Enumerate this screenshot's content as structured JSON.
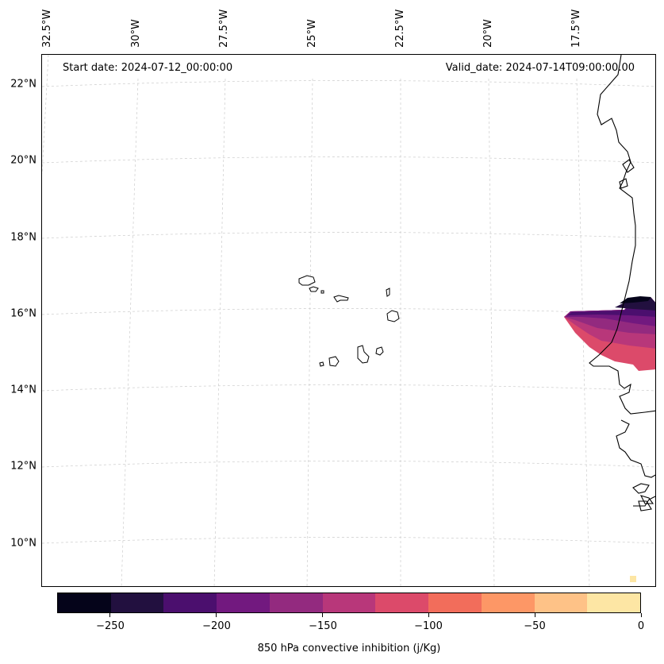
{
  "map": {
    "start_date": "Start date: 2024-07-12_00:00:00",
    "valid_date": "Valid_date: 2024-07-14T09:00:00.00",
    "lat_labels": [
      "22°N",
      "20°N",
      "18°N",
      "16°N",
      "14°N",
      "12°N",
      "10°N"
    ],
    "lon_labels": [
      "32.5°W",
      "30°W",
      "27.5°W",
      "25°W",
      "22.5°W",
      "20°W",
      "17.5°W"
    ]
  },
  "colorbar": {
    "title": "850 hPa convective inhibition (j/Kg)",
    "tick_labels": [
      "−250",
      "−200",
      "−150",
      "−100",
      "−50",
      "0"
    ],
    "levels": [
      -275,
      -250,
      -225,
      -200,
      -175,
      -150,
      -125,
      -100,
      -75,
      -50,
      -25,
      0
    ],
    "colors": [
      "#05041a",
      "#22103f",
      "#4b0f6e",
      "#72197f",
      "#932a7f",
      "#b8377a",
      "#dc4a6a",
      "#f26d5b",
      "#fd9766",
      "#fec287",
      "#fde6a4"
    ]
  },
  "chart_data": {
    "type": "heatmap",
    "title": "850 hPa convective inhibition (j/Kg)",
    "start_date": "2024-07-12_00:00:00",
    "valid_date": "2024-07-14T09:00:00.00",
    "lat_range": [
      9,
      22.8
    ],
    "lon_range": [
      -33,
      -16.2
    ],
    "color_range": [
      -275,
      0
    ],
    "regions": [
      {
        "location": "Senegal coast near 16°N, 16.5°W",
        "min_value": -275,
        "max_value": -100
      },
      {
        "location": "bottom-right corner",
        "value": -10
      }
    ]
  }
}
